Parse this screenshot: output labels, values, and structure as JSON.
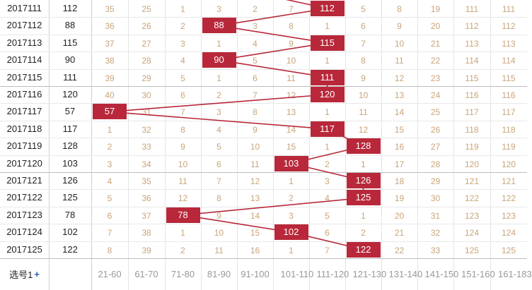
{
  "footer": {
    "selector_label": "选号1",
    "add_symbol": "+"
  },
  "columns": [
    "",
    "",
    "21-60",
    "61-70",
    "71-80",
    "81-90",
    "91-100",
    "101-110",
    "111-120",
    "121-130",
    "131-140",
    "141-150",
    "151-160",
    "161-183"
  ],
  "accent_color": "#b8283a",
  "rows": [
    {
      "period": "2017111",
      "sum": "112",
      "cells": [
        "35",
        "25",
        "1",
        "3",
        "2",
        "7",
        "112",
        "5",
        "8",
        "19",
        "111",
        "111"
      ],
      "hit": 6
    },
    {
      "period": "2017112",
      "sum": "88",
      "cells": [
        "36",
        "26",
        "2",
        "88",
        "3",
        "8",
        "1",
        "6",
        "9",
        "20",
        "112",
        "112"
      ],
      "hit": 3
    },
    {
      "period": "2017113",
      "sum": "115",
      "cells": [
        "37",
        "27",
        "3",
        "1",
        "4",
        "9",
        "115",
        "7",
        "10",
        "21",
        "113",
        "113"
      ],
      "hit": 6
    },
    {
      "period": "2017114",
      "sum": "90",
      "cells": [
        "38",
        "28",
        "4",
        "90",
        "5",
        "10",
        "1",
        "8",
        "11",
        "22",
        "114",
        "114"
      ],
      "hit": 3
    },
    {
      "period": "2017115",
      "sum": "111",
      "cells": [
        "39",
        "29",
        "5",
        "1",
        "6",
        "11",
        "111",
        "9",
        "12",
        "23",
        "115",
        "115"
      ],
      "hit": 6
    },
    {
      "period": "2017116",
      "sum": "120",
      "cells": [
        "40",
        "30",
        "6",
        "2",
        "7",
        "12",
        "120",
        "10",
        "13",
        "24",
        "116",
        "116"
      ],
      "hit": 6
    },
    {
      "period": "2017117",
      "sum": "57",
      "cells": [
        "57",
        "31",
        "7",
        "3",
        "8",
        "13",
        "1",
        "11",
        "14",
        "25",
        "117",
        "117"
      ],
      "hit": 0
    },
    {
      "period": "2017118",
      "sum": "117",
      "cells": [
        "1",
        "32",
        "8",
        "4",
        "9",
        "14",
        "117",
        "12",
        "15",
        "26",
        "118",
        "118"
      ],
      "hit": 6
    },
    {
      "period": "2017119",
      "sum": "128",
      "cells": [
        "2",
        "33",
        "9",
        "5",
        "10",
        "15",
        "1",
        "128",
        "16",
        "27",
        "119",
        "119"
      ],
      "hit": 7
    },
    {
      "period": "2017120",
      "sum": "103",
      "cells": [
        "3",
        "34",
        "10",
        "6",
        "11",
        "103",
        "2",
        "1",
        "17",
        "28",
        "120",
        "120"
      ],
      "hit": 5
    },
    {
      "period": "2017121",
      "sum": "126",
      "cells": [
        "4",
        "35",
        "11",
        "7",
        "12",
        "1",
        "3",
        "126",
        "18",
        "29",
        "121",
        "121"
      ],
      "hit": 7
    },
    {
      "period": "2017122",
      "sum": "125",
      "cells": [
        "5",
        "36",
        "12",
        "8",
        "13",
        "2",
        "4",
        "125",
        "19",
        "30",
        "122",
        "122"
      ],
      "hit": 7
    },
    {
      "period": "2017123",
      "sum": "78",
      "cells": [
        "6",
        "37",
        "78",
        "9",
        "14",
        "3",
        "5",
        "1",
        "20",
        "31",
        "123",
        "123"
      ],
      "hit": 2
    },
    {
      "period": "2017124",
      "sum": "102",
      "cells": [
        "7",
        "38",
        "1",
        "10",
        "15",
        "102",
        "6",
        "2",
        "21",
        "32",
        "124",
        "124"
      ],
      "hit": 5
    },
    {
      "period": "2017125",
      "sum": "122",
      "cells": [
        "8",
        "39",
        "2",
        "11",
        "16",
        "1",
        "7",
        "122",
        "22",
        "33",
        "125",
        "125"
      ],
      "hit": 7
    }
  ]
}
